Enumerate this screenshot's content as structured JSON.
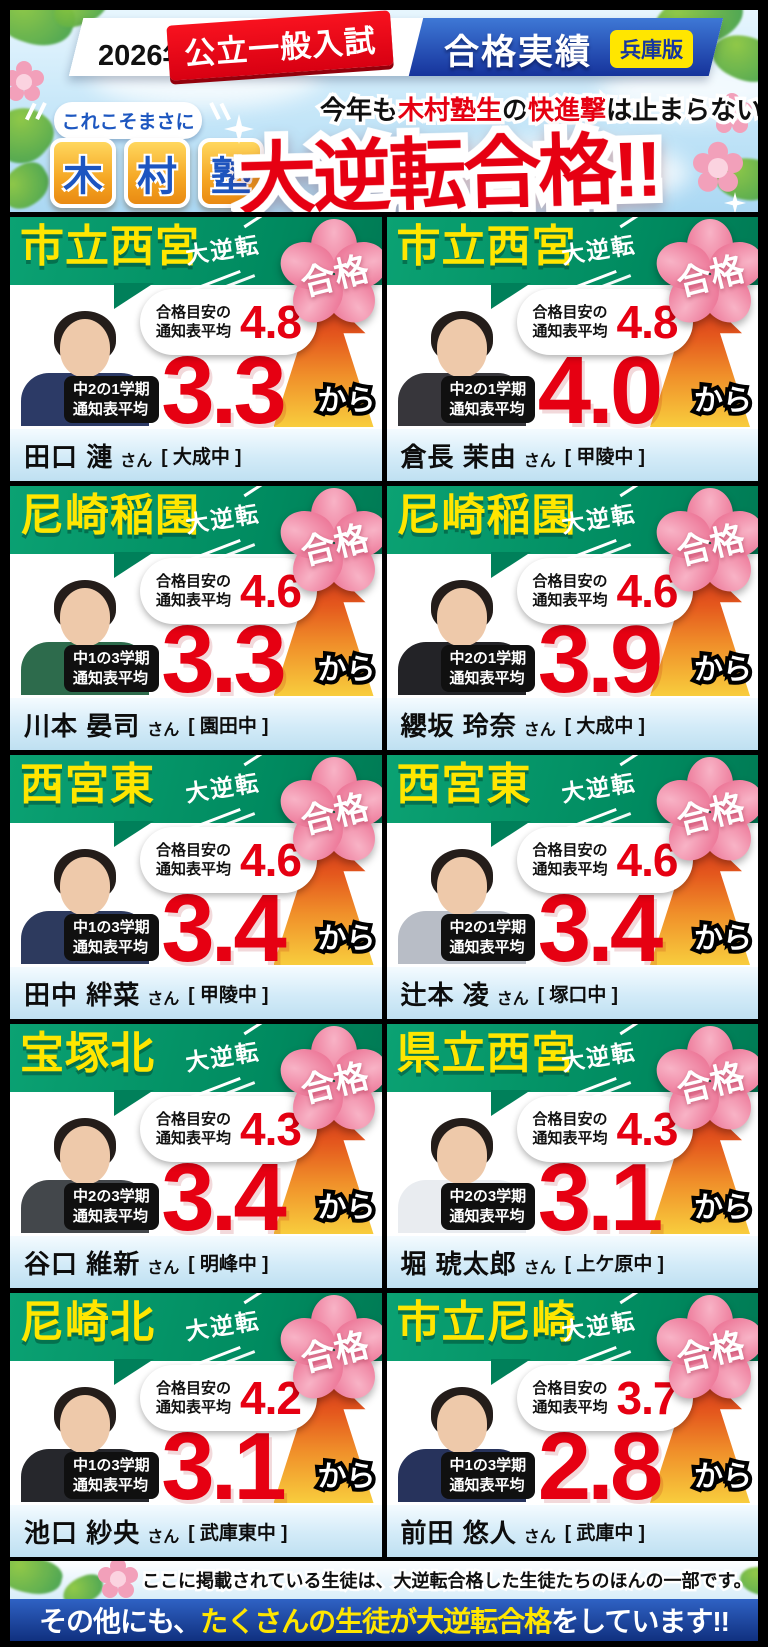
{
  "header": {
    "year": "2026年",
    "exam_type": "公立一般入試",
    "results_label": "合格実績",
    "edition": "兵庫版",
    "tagline_prefix": "これこそまさに",
    "brand_chars": [
      "木",
      "村",
      "塾"
    ],
    "subtitle_parts": [
      {
        "text": "今年も",
        "color": "black"
      },
      {
        "text": "木村塾生",
        "color": "red"
      },
      {
        "text": "の",
        "color": "black"
      },
      {
        "text": "快進撃",
        "color": "red"
      },
      {
        "text": "は止まらない!!",
        "color": "black"
      }
    ],
    "main_title": "大逆転合格!!"
  },
  "card_common": {
    "reversal_label": "大逆転",
    "pass_label": "合格",
    "target_label_line1": "合格目安の",
    "target_label_line2": "通知表平均",
    "from_label": "から",
    "honorific": "さん"
  },
  "students": [
    {
      "school": "市立西宮",
      "target": "4.8",
      "from": "3.3",
      "grade_line1": "中2の1学期",
      "grade_line2": "通知表平均",
      "name": "田口 漣",
      "jhs": "[ 大成中 ]",
      "clothing": "#2c3a66"
    },
    {
      "school": "市立西宮",
      "target": "4.8",
      "from": "4.0",
      "grade_line1": "中2の1学期",
      "grade_line2": "通知表平均",
      "name": "倉長 茉由",
      "jhs": "[ 甲陵中 ]",
      "clothing": "#37363b"
    },
    {
      "school": "尼崎稲園",
      "target": "4.6",
      "from": "3.3",
      "grade_line1": "中1の3学期",
      "grade_line2": "通知表平均",
      "name": "川本 晏司",
      "jhs": "[ 園田中 ]",
      "clothing": "#2d6b4c"
    },
    {
      "school": "尼崎稲園",
      "target": "4.6",
      "from": "3.9",
      "grade_line1": "中2の1学期",
      "grade_line2": "通知表平均",
      "name": "纓坂 玲奈",
      "jhs": "[ 大成中 ]",
      "clothing": "#232327"
    },
    {
      "school": "西宮東",
      "target": "4.6",
      "from": "3.4",
      "grade_line1": "中1の3学期",
      "grade_line2": "通知表平均",
      "name": "田中 絆菜",
      "jhs": "[ 甲陵中 ]",
      "clothing": "#2d3a5e"
    },
    {
      "school": "西宮東",
      "target": "4.6",
      "from": "3.4",
      "grade_line1": "中2の1学期",
      "grade_line2": "通知表平均",
      "name": "辻本 凌",
      "jhs": "[ 塚口中 ]",
      "clothing": "#b8bdc6"
    },
    {
      "school": "宝塚北",
      "target": "4.3",
      "from": "3.4",
      "grade_line1": "中2の3学期",
      "grade_line2": "通知表平均",
      "name": "谷口 維新",
      "jhs": "[ 明峰中 ]",
      "clothing": "#43474b"
    },
    {
      "school": "県立西宮",
      "target": "4.3",
      "from": "3.1",
      "grade_line1": "中2の3学期",
      "grade_line2": "通知表平均",
      "name": "堀 琥太郎",
      "jhs": "[ 上ケ原中 ]",
      "clothing": "#e9ecf0"
    },
    {
      "school": "尼崎北",
      "target": "4.2",
      "from": "3.1",
      "grade_line1": "中1の3学期",
      "grade_line2": "通知表平均",
      "name": "池口 紗央",
      "jhs": "[ 武庫東中 ]",
      "clothing": "#26272c"
    },
    {
      "school": "市立尼崎",
      "target": "3.7",
      "from": "2.8",
      "grade_line1": "中1の3学期",
      "grade_line2": "通知表平均",
      "name": "前田 悠人",
      "jhs": "[ 武庫中 ]",
      "clothing": "#27335c"
    }
  ],
  "footer": {
    "note": "ここに掲載されている生徒は、大逆転合格した生徒たちのほんの一部です。",
    "banner_parts": [
      {
        "text": "その他にも、",
        "color": "white"
      },
      {
        "text": "たくさんの生徒が大逆転合格",
        "color": "yellow"
      },
      {
        "text": "をしています!!",
        "color": "white"
      }
    ]
  },
  "colors": {
    "accent_red": "#e60012",
    "accent_yellow": "#ffe600",
    "banner_green": "#009468",
    "bar_blue": "#16339b",
    "sakura_pink": "#ee7f9e",
    "namebar_blue": "#cfeaf7"
  }
}
